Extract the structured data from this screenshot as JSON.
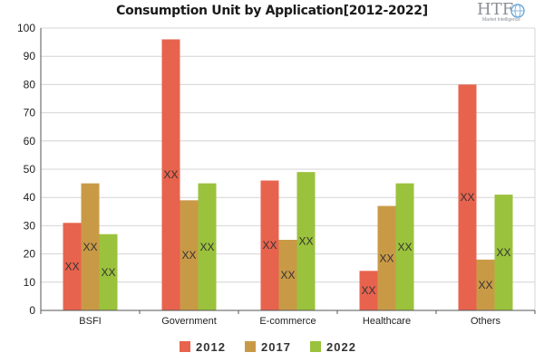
{
  "logo": {
    "text": "HTF",
    "subtext": "Market Intelligence"
  },
  "chart_data": {
    "type": "bar",
    "title": "Consumption Unit by  Application[2012-2022]",
    "categories": [
      "BSFI",
      "Government",
      "E-commerce",
      "Healthcare",
      "Others"
    ],
    "series": [
      {
        "name": "2012",
        "color": "#e8634e",
        "values": [
          31,
          96,
          46,
          14,
          80
        ]
      },
      {
        "name": "2017",
        "color": "#c99a46",
        "values": [
          45,
          39,
          25,
          37,
          18
        ]
      },
      {
        "name": "2022",
        "color": "#9bc23c",
        "values": [
          27,
          45,
          49,
          45,
          41
        ]
      }
    ],
    "data_labels": "XX",
    "ylim": [
      0,
      100
    ],
    "yticks": [
      0,
      10,
      20,
      30,
      40,
      50,
      60,
      70,
      80,
      90,
      100
    ],
    "grid": true,
    "legend": "bottom"
  }
}
